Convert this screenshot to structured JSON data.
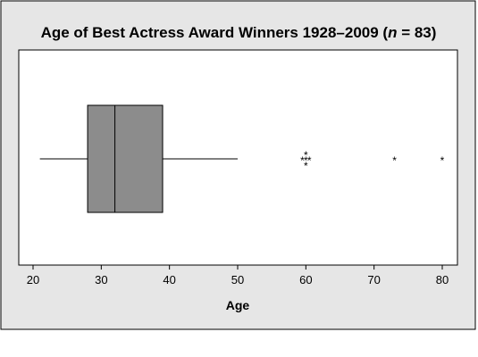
{
  "chart_data": {
    "type": "boxplot",
    "title_main": "Age of Best Actress Award Winners 1928–2009 (",
    "title_n": "n",
    "title_tail": " = 83)",
    "xlabel": "Age",
    "xlim": [
      18,
      81
    ],
    "xticks": [
      "20",
      "30",
      "40",
      "50",
      "60",
      "70",
      "80"
    ],
    "box": {
      "whisker_low": 21,
      "q1": 28,
      "median": 32,
      "q3": 39,
      "whisker_high": 50
    },
    "outliers": [
      {
        "x": 59.5,
        "level": 0
      },
      {
        "x": 60,
        "level": -1
      },
      {
        "x": 60,
        "level": 0
      },
      {
        "x": 60,
        "level": 1
      },
      {
        "x": 60.5,
        "level": 0
      },
      {
        "x": 73,
        "level": 0
      },
      {
        "x": 80,
        "level": 0
      }
    ],
    "box_fill": "#8c8c8c",
    "panel_background": "#e6e6e6",
    "plot_background": "#ffffff"
  }
}
